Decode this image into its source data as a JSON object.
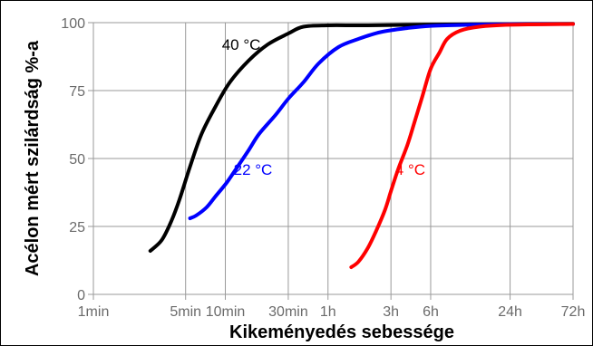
{
  "chart_data": {
    "type": "line",
    "title": "",
    "xlabel": "Kikeményedés sebessége",
    "ylabel": "Acélon mért szilárdság %-a",
    "x_scale": "log",
    "x_unit": "hours",
    "x_ticks": [
      {
        "value": 0.016667,
        "label": "1min"
      },
      {
        "value": 0.083333,
        "label": "5min"
      },
      {
        "value": 0.166667,
        "label": "10min"
      },
      {
        "value": 0.5,
        "label": "30min"
      },
      {
        "value": 1,
        "label": "1h"
      },
      {
        "value": 3,
        "label": "3h"
      },
      {
        "value": 6,
        "label": "6h"
      },
      {
        "value": 24,
        "label": "24h"
      },
      {
        "value": 72,
        "label": "72h"
      }
    ],
    "y_ticks": [
      0,
      25,
      50,
      75,
      100
    ],
    "ylim": [
      0,
      100
    ],
    "xlim": [
      0.016667,
      72
    ],
    "grid": true,
    "series": [
      {
        "name": "40 °C",
        "color": "#000000",
        "x": [
          0.045,
          0.055,
          0.065,
          0.075,
          0.09,
          0.11,
          0.14,
          0.18,
          0.25,
          0.35,
          0.5,
          0.65,
          1,
          2,
          6,
          24,
          72
        ],
        "y": [
          16,
          20,
          27,
          35,
          47,
          59,
          69,
          78,
          86,
          92,
          96,
          98.5,
          99,
          99,
          99.3,
          99.5,
          99.6
        ]
      },
      {
        "name": "22 °C",
        "color": "#0000ff",
        "x": [
          0.09,
          0.1,
          0.12,
          0.14,
          0.17,
          0.2,
          0.25,
          0.3,
          0.4,
          0.5,
          0.65,
          0.85,
          1.2,
          1.7,
          2.5,
          4,
          6,
          12,
          24,
          72
        ],
        "y": [
          28,
          29,
          32,
          36,
          41,
          46,
          53,
          59,
          66,
          72,
          78,
          85,
          91,
          94,
          96.5,
          98,
          98.8,
          99.2,
          99.4,
          99.5
        ]
      },
      {
        "name": "4 °C",
        "color": "#ff0000",
        "x": [
          1.5,
          1.7,
          2,
          2.3,
          2.7,
          3,
          3.4,
          4,
          4.5,
          5.2,
          6,
          7,
          8,
          10,
          14,
          24,
          72
        ],
        "y": [
          10,
          12,
          17,
          23,
          31,
          38,
          46,
          55,
          63,
          73,
          83,
          89,
          94,
          97,
          98.5,
          99.2,
          99.5
        ]
      }
    ],
    "annotations": [
      {
        "text": "40 °C",
        "x": 0.22,
        "y": 90,
        "color": "#000000"
      },
      {
        "text": "22 °C",
        "x": 0.27,
        "y": 44,
        "color": "#0000ff"
      },
      {
        "text": "4 °C",
        "x": 4.2,
        "y": 44,
        "color": "#ff0000"
      }
    ]
  }
}
